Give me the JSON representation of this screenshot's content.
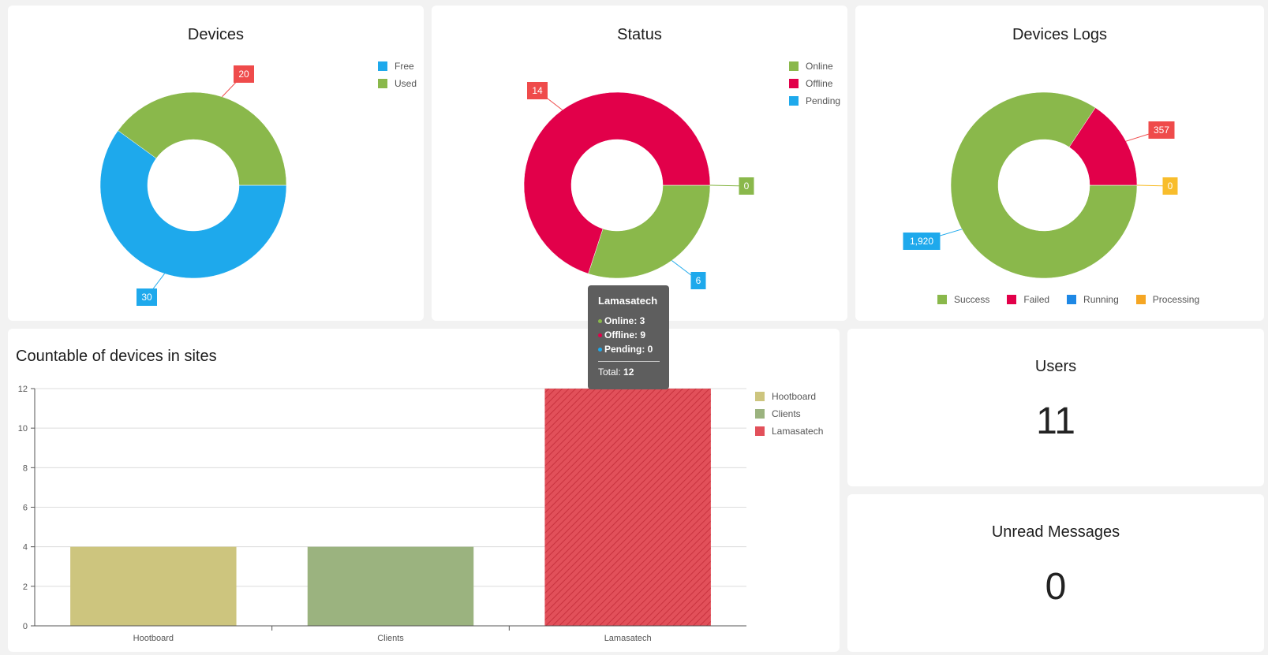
{
  "devices": {
    "title": "Devices",
    "legend": [
      {
        "label": "Free",
        "color": "#1ea9ec"
      },
      {
        "label": "Used",
        "color": "#8ab84b"
      }
    ]
  },
  "status": {
    "title": "Status",
    "legend": [
      {
        "label": "Online",
        "color": "#8ab84b"
      },
      {
        "label": "Offline",
        "color": "#e2004a"
      },
      {
        "label": "Pending",
        "color": "#1ea9ec"
      }
    ]
  },
  "logs": {
    "title": "Devices Logs",
    "legend": [
      {
        "label": "Success",
        "color": "#8ab84b"
      },
      {
        "label": "Failed",
        "color": "#e2004a"
      },
      {
        "label": "Running",
        "color": "#1e88e5"
      },
      {
        "label": "Processing",
        "color": "#f5a623"
      }
    ]
  },
  "sites": {
    "title": "Countable of devices in sites",
    "legend": [
      {
        "label": "Hootboard",
        "color": "#cdc57e"
      },
      {
        "label": "Clients",
        "color": "#9bb37f"
      },
      {
        "label": "Lamasatech",
        "color": "#e2505a"
      }
    ]
  },
  "tooltip": {
    "title": "Lamasatech",
    "rows": [
      {
        "label": "Online: 3",
        "color": "#8ab84b"
      },
      {
        "label": "Offline: 9",
        "color": "#e2004a"
      },
      {
        "label": "Pending: 0",
        "color": "#1ea9ec"
      }
    ],
    "total_label": "Total: ",
    "total_value": "12"
  },
  "users": {
    "title": "Users",
    "value": "11"
  },
  "messages": {
    "title": "Unread Messages",
    "value": "0"
  },
  "chart_data": [
    {
      "type": "pie",
      "title": "Devices",
      "donut": true,
      "categories": [
        "Free",
        "Used"
      ],
      "values": [
        30,
        20
      ],
      "colors": [
        "#1ea9ec",
        "#8ab84b"
      ],
      "callout_colors": [
        "#1ea9ec",
        "#ef4b4b"
      ],
      "labels": [
        "30",
        "20"
      ]
    },
    {
      "type": "pie",
      "title": "Status",
      "donut": true,
      "categories": [
        "Online",
        "Offline",
        "Pending"
      ],
      "values": [
        6,
        14,
        0
      ],
      "colors": [
        "#8ab84b",
        "#e2004a",
        "#1ea9ec"
      ],
      "callout_colors": [
        "#1ea9ec",
        "#ef4b4b",
        "#8ab84b"
      ],
      "labels": [
        "6",
        "14",
        "0"
      ]
    },
    {
      "type": "pie",
      "title": "Devices Logs",
      "donut": true,
      "categories": [
        "Success",
        "Failed",
        "Running",
        "Processing"
      ],
      "values": [
        1920,
        357,
        0,
        0
      ],
      "colors": [
        "#8ab84b",
        "#e2004a",
        "#1e88e5",
        "#f5a623"
      ],
      "callout_colors": [
        "#1ea9ec",
        "#ef4b4b",
        "#1e88e5",
        "#f8bd2c"
      ],
      "labels": [
        "1,920",
        "357",
        "",
        "0"
      ]
    },
    {
      "type": "bar",
      "title": "Countable of devices in sites",
      "categories": [
        "Hootboard",
        "Clients",
        "Lamasatech"
      ],
      "values": [
        4,
        4,
        12
      ],
      "colors": [
        "#cdc57e",
        "#9bb37f",
        "#e2505a"
      ],
      "ylim": [
        0,
        12
      ],
      "yticks": [
        0,
        2,
        4,
        6,
        8,
        10,
        12
      ],
      "grid": true
    }
  ]
}
